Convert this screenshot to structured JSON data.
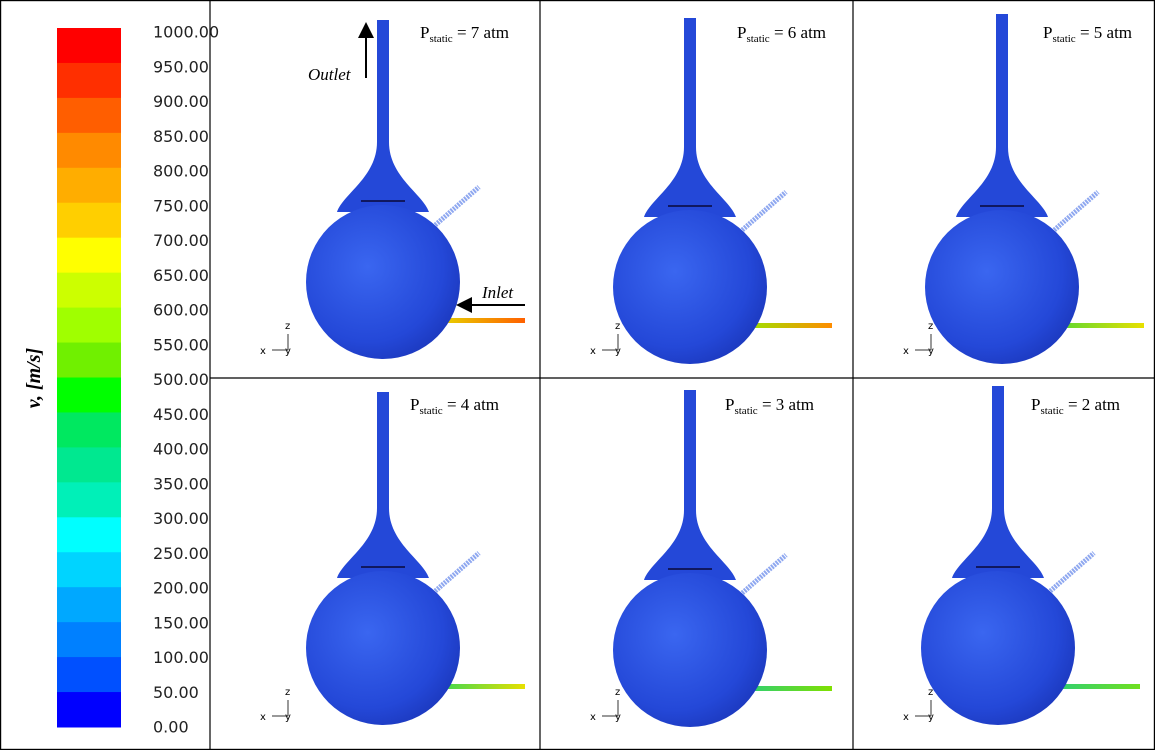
{
  "colorbar": {
    "title": "v, [m/s]",
    "labels": [
      "1000.00",
      "950.00",
      "900.00",
      "850.00",
      "800.00",
      "750.00",
      "700.00",
      "650.00",
      "600.00",
      "550.00",
      "500.00",
      "450.00",
      "400.00",
      "350.00",
      "300.00",
      "250.00",
      "200.00",
      "150.00",
      "100.00",
      "50.00",
      "0.00"
    ],
    "colors": [
      "#ff0000",
      "#ff2f00",
      "#ff5e00",
      "#ff8a00",
      "#ffad00",
      "#ffcf00",
      "#ffff00",
      "#ccff00",
      "#a0ff00",
      "#70f000",
      "#00ff00",
      "#00e860",
      "#00e890",
      "#00f0b8",
      "#00ffff",
      "#00d4ff",
      "#00a8ff",
      "#0080ff",
      "#0050ff",
      "#0000ff"
    ]
  },
  "panels": [
    {
      "symbol": "P",
      "subscript": "static",
      "text": " = 7 atm"
    },
    {
      "symbol": "P",
      "subscript": "static",
      "text": " = 6 atm"
    },
    {
      "symbol": "P",
      "subscript": "static",
      "text": " = 5 atm"
    },
    {
      "symbol": "P",
      "subscript": "static",
      "text": " = 4 atm"
    },
    {
      "symbol": "P",
      "subscript": "static",
      "text": " = 3 atm"
    },
    {
      "symbol": "P",
      "subscript": "static",
      "text": " = 2 atm"
    }
  ],
  "annotations": {
    "outlet": "Outlet",
    "inlet": "Inlet",
    "axis_z": "z",
    "axis_x": "x",
    "axis_y": "y"
  }
}
